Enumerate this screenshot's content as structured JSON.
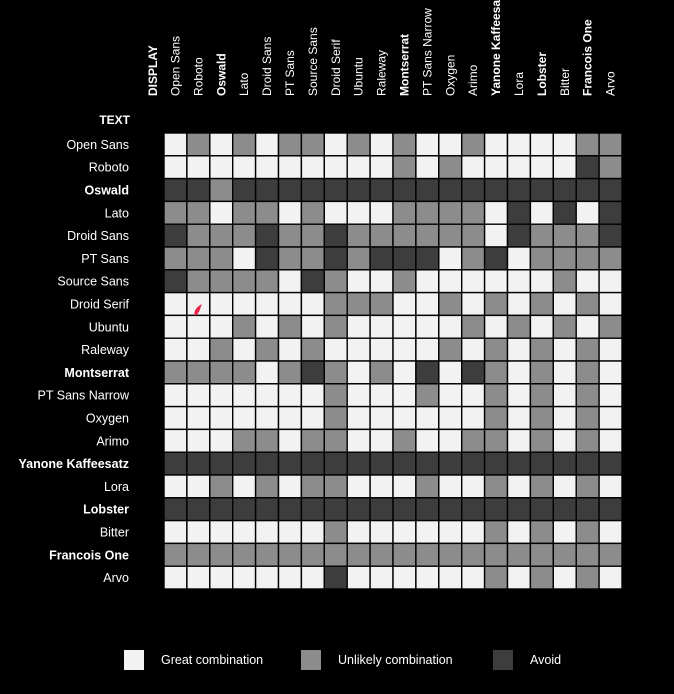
{
  "chart_data": {
    "type": "heatmap",
    "x_axis_title": "DISPLAY",
    "y_axis_title": "TEXT",
    "columns": [
      "Open Sans",
      "Roboto",
      "Oswald",
      "Lato",
      "Droid Sans",
      "PT Sans",
      "Source Sans",
      "Droid Serif",
      "Ubuntu",
      "Raleway",
      "Montserrat",
      "PT Sans Narrow",
      "Oxygen",
      "Arimo",
      "Yanone Kaffeesatz",
      "Lora",
      "Lobster",
      "Bitter",
      "Francois One",
      "Arvo"
    ],
    "rows": [
      "Open Sans",
      "Roboto",
      "Oswald",
      "Lato",
      "Droid Sans",
      "PT Sans",
      "Source Sans",
      "Droid Serif",
      "Ubuntu",
      "Raleway",
      "Montserrat",
      "PT Sans Narrow",
      "Oxygen",
      "Arimo",
      "Yanone Kaffeesatz",
      "Lora",
      "Lobster",
      "Bitter",
      "Francois One",
      "Arvo"
    ],
    "legend": [
      {
        "key": "G",
        "label": "Great combination",
        "color": "#f2f2f2"
      },
      {
        "key": "U",
        "label": "Unlikely combination",
        "color": "#8c8c8c"
      },
      {
        "key": "A",
        "label": "Avoid",
        "color": "#3d3d3d"
      }
    ],
    "matrix": [
      "GUGUGUUGUGUGGUGGGGUU",
      "GGGGGGGGGGUGUGGGGGAU",
      "AAUAAAAAAAAAAAAAAAAA",
      "UUGUUGUGGGUUUUGAGAGA",
      "AUUUAUUAUUUUUUGAUUUA",
      "UUUGAUUAUAAAGUAGUUUU",
      "AUUUUGAUGGUGGGGGGUGG",
      "GGGGGGGUUUGGUGUGUGUG",
      "GGGUGUGUGGGGGUGUGUGU",
      "GGUGUGUGGGGGUGUGUGUG",
      "UUUUGUAUGUGAGAUGUGUG",
      "GGGGGGGUGGGUGGUGUGUG",
      "GGGGGGGUGGGGGGUGUGUG",
      "GGGUUGUUGGUGGUUGUGUG",
      "AAAAAAAAAAAAAAAAAAAA",
      "GGUGUGUUGGGUGGUGUGUG",
      "AAAAAAAAAAAAAAAAAAAA",
      "GGGGGGGUGGGGGGUGUGUG",
      "UUUUUUUUUUUUUUUUUUUU",
      "GGGGGGGAGGGGGGUGUGUG"
    ]
  },
  "bold_labels": [
    "Oswald",
    "Montserrat",
    "Francois One",
    "Yanone Kaffeesatz",
    "Lobster"
  ],
  "cursor": {
    "name": "red-pointer",
    "color": "#e8234a"
  }
}
